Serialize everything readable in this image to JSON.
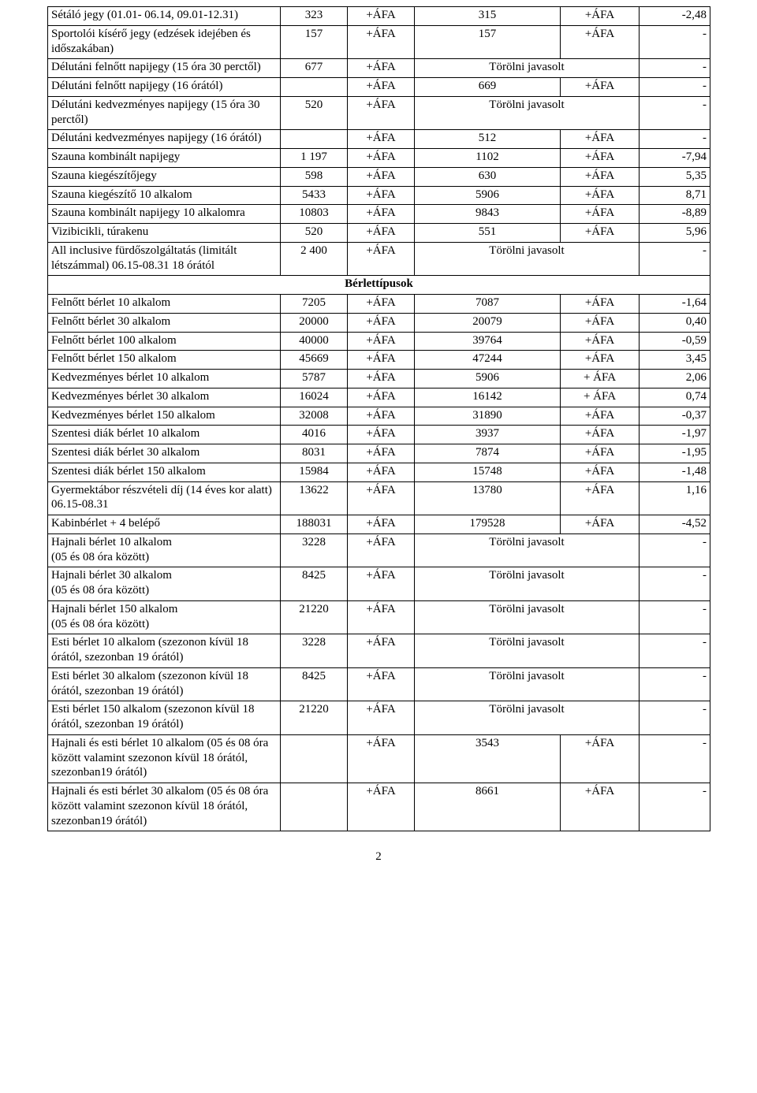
{
  "rows": [
    {
      "type": "row",
      "desc": "Sétáló jegy (01.01- 06.14, 09.01-12.31)",
      "n1": "323",
      "a1": "+ÁFA",
      "n2": "315",
      "a2": "+ÁFA",
      "pct": "-2,48"
    },
    {
      "type": "row",
      "desc": "Sportolói kísérő jegy (edzések idejében és időszakában)",
      "n1": "157",
      "a1": "+ÁFA",
      "n2": "157",
      "a2": "+ÁFA",
      "pct": "-"
    },
    {
      "type": "row",
      "desc": "Délutáni felnőtt napijegy (15 óra 30 perctől)",
      "n1": "677",
      "a1": "+ÁFA",
      "n2": "Törölni javasolt",
      "a2": "",
      "pct": "-",
      "merge2": true
    },
    {
      "type": "row",
      "desc": "Délutáni felnőtt napijegy (16 órától)",
      "n1": "",
      "a1": "+ÁFA",
      "n2": "669",
      "a2": "+ÁFA",
      "pct": "-"
    },
    {
      "type": "row",
      "desc": "Délutáni kedvezményes napijegy (15 óra 30 perctől)",
      "n1": "520",
      "a1": "+ÁFA",
      "n2": "Törölni javasolt",
      "a2": "",
      "pct": "-",
      "merge2": true
    },
    {
      "type": "row",
      "desc": "Délutáni kedvezményes napijegy (16 órától)",
      "n1": "",
      "a1": "+ÁFA",
      "n2": "512",
      "a2": "+ÁFA",
      "pct": "-"
    },
    {
      "type": "row",
      "desc": "Szauna kombinált napijegy",
      "n1": "1 197",
      "a1": "+ÁFA",
      "n2": "1102",
      "a2": "+ÁFA",
      "pct": "-7,94"
    },
    {
      "type": "row",
      "desc": "Szauna kiegészítőjegy",
      "n1": "598",
      "a1": "+ÁFA",
      "n2": "630",
      "a2": "+ÁFA",
      "pct": "5,35"
    },
    {
      "type": "row",
      "desc": "Szauna kiegészítő 10 alkalom",
      "n1": "5433",
      "a1": "+ÁFA",
      "n2": "5906",
      "a2": "+ÁFA",
      "pct": "8,71"
    },
    {
      "type": "row",
      "desc": "Szauna kombinált napijegy 10 alkalomra",
      "n1": "10803",
      "a1": "+ÁFA",
      "n2": "9843",
      "a2": "+ÁFA",
      "pct": "-8,89"
    },
    {
      "type": "row",
      "desc": "Vizibicikli, túrakenu",
      "n1": "520",
      "a1": "+ÁFA",
      "n2": "551",
      "a2": "+ÁFA",
      "pct": "5,96"
    },
    {
      "type": "row",
      "desc": "All inclusive fürdőszolgáltatás (limitált létszámmal) 06.15-08.31 18 órától",
      "n1": "2 400",
      "a1": "+ÁFA",
      "n2": "Törölni javasolt",
      "a2": "",
      "pct": "-",
      "merge2": true
    },
    {
      "type": "section",
      "label": "Bérlettípusok"
    },
    {
      "type": "row",
      "desc": "Felnőtt bérlet 10 alkalom",
      "n1": "7205",
      "a1": "+ÁFA",
      "n2": "7087",
      "a2": "+ÁFA",
      "pct": "-1,64"
    },
    {
      "type": "row",
      "desc": "Felnőtt bérlet 30 alkalom",
      "n1": "20000",
      "a1": "+ÁFA",
      "n2": "20079",
      "a2": "+ÁFA",
      "pct": "0,40"
    },
    {
      "type": "row",
      "desc": "Felnőtt bérlet 100 alkalom",
      "n1": "40000",
      "a1": "+ÁFA",
      "n2": "39764",
      "a2": "+ÁFA",
      "pct": "-0,59"
    },
    {
      "type": "row",
      "desc": "Felnőtt bérlet 150 alkalom",
      "n1": "45669",
      "a1": "+ÁFA",
      "n2": "47244",
      "a2": "+ÁFA",
      "pct": "3,45"
    },
    {
      "type": "row",
      "desc": "Kedvezményes bérlet 10 alkalom",
      "n1": "5787",
      "a1": "+ÁFA",
      "n2": "5906",
      "a2": "+ ÁFA",
      "pct": "2,06"
    },
    {
      "type": "row",
      "desc": "Kedvezményes bérlet 30 alkalom",
      "n1": "16024",
      "a1": "+ÁFA",
      "n2": "16142",
      "a2": "+ ÁFA",
      "pct": "0,74"
    },
    {
      "type": "row",
      "desc": "Kedvezményes bérlet 150 alkalom",
      "n1": "32008",
      "a1": "+ÁFA",
      "n2": "31890",
      "a2": "+ÁFA",
      "pct": "-0,37"
    },
    {
      "type": "row",
      "desc": "Szentesi diák bérlet 10 alkalom",
      "n1": "4016",
      "a1": "+ÁFA",
      "n2": "3937",
      "a2": "+ÁFA",
      "pct": "-1,97"
    },
    {
      "type": "row",
      "desc": "Szentesi diák bérlet 30 alkalom",
      "n1": "8031",
      "a1": "+ÁFA",
      "n2": "7874",
      "a2": "+ÁFA",
      "pct": "-1,95"
    },
    {
      "type": "row",
      "desc": "Szentesi diák bérlet 150 alkalom",
      "n1": "15984",
      "a1": "+ÁFA",
      "n2": "15748",
      "a2": "+ÁFA",
      "pct": "-1,48"
    },
    {
      "type": "row",
      "desc": "Gyermektábor részvételi díj (14 éves kor alatt) 06.15-08.31",
      "n1": "13622",
      "a1": "+ÁFA",
      "n2": "13780",
      "a2": "+ÁFA",
      "pct": "1,16"
    },
    {
      "type": "row",
      "desc": "Kabinbérlet + 4 belépő",
      "n1": "188031",
      "a1": "+ÁFA",
      "n2": "179528",
      "a2": "+ÁFA",
      "pct": "-4,52"
    },
    {
      "type": "row",
      "desc": "Hajnali bérlet 10 alkalom\n(05 és 08 óra között)",
      "n1": "3228",
      "a1": "+ÁFA",
      "n2": "Törölni javasolt",
      "a2": "",
      "pct": "-",
      "merge2": true
    },
    {
      "type": "row",
      "desc": "Hajnali bérlet 30 alkalom\n(05 és 08 óra között)",
      "n1": "8425",
      "a1": "+ÁFA",
      "n2": "Törölni javasolt",
      "a2": "",
      "pct": "-",
      "merge2": true
    },
    {
      "type": "row",
      "desc": "Hajnali bérlet 150 alkalom\n(05 és 08 óra között)",
      "n1": "21220",
      "a1": "+ÁFA",
      "n2": "Törölni javasolt",
      "a2": "",
      "pct": "-",
      "merge2": true
    },
    {
      "type": "row",
      "desc": "Esti bérlet 10 alkalom (szezonon kívül 18 órától, szezonban 19 órától)",
      "n1": "3228",
      "a1": "+ÁFA",
      "n2": "Törölni javasolt",
      "a2": "",
      "pct": "-",
      "merge2": true
    },
    {
      "type": "row",
      "desc": "Esti bérlet 30 alkalom (szezonon kívül 18 órától, szezonban 19 órától)",
      "n1": "8425",
      "a1": "+ÁFA",
      "n2": "Törölni javasolt",
      "a2": "",
      "pct": "-",
      "merge2": true
    },
    {
      "type": "row",
      "desc": "Esti bérlet 150 alkalom (szezonon kívül 18 órától, szezonban 19 órától)",
      "n1": "21220",
      "a1": "+ÁFA",
      "n2": "Törölni javasolt",
      "a2": "",
      "pct": "-",
      "merge2": true
    },
    {
      "type": "row",
      "desc": "Hajnali és esti bérlet 10 alkalom (05 és 08 óra között valamint szezonon kívül 18 órától, szezonban19 órától)",
      "n1": "",
      "a1": "+ÁFA",
      "n2": "3543",
      "a2": "+ÁFA",
      "pct": "-"
    },
    {
      "type": "row",
      "desc": "Hajnali és esti bérlet 30 alkalom (05 és 08 óra között valamint szezonon kívül 18 órától, szezonban19 órától)",
      "n1": "",
      "a1": "+ÁFA",
      "n2": "8661",
      "a2": "+ÁFA",
      "pct": "-"
    }
  ],
  "pageNumber": "2"
}
